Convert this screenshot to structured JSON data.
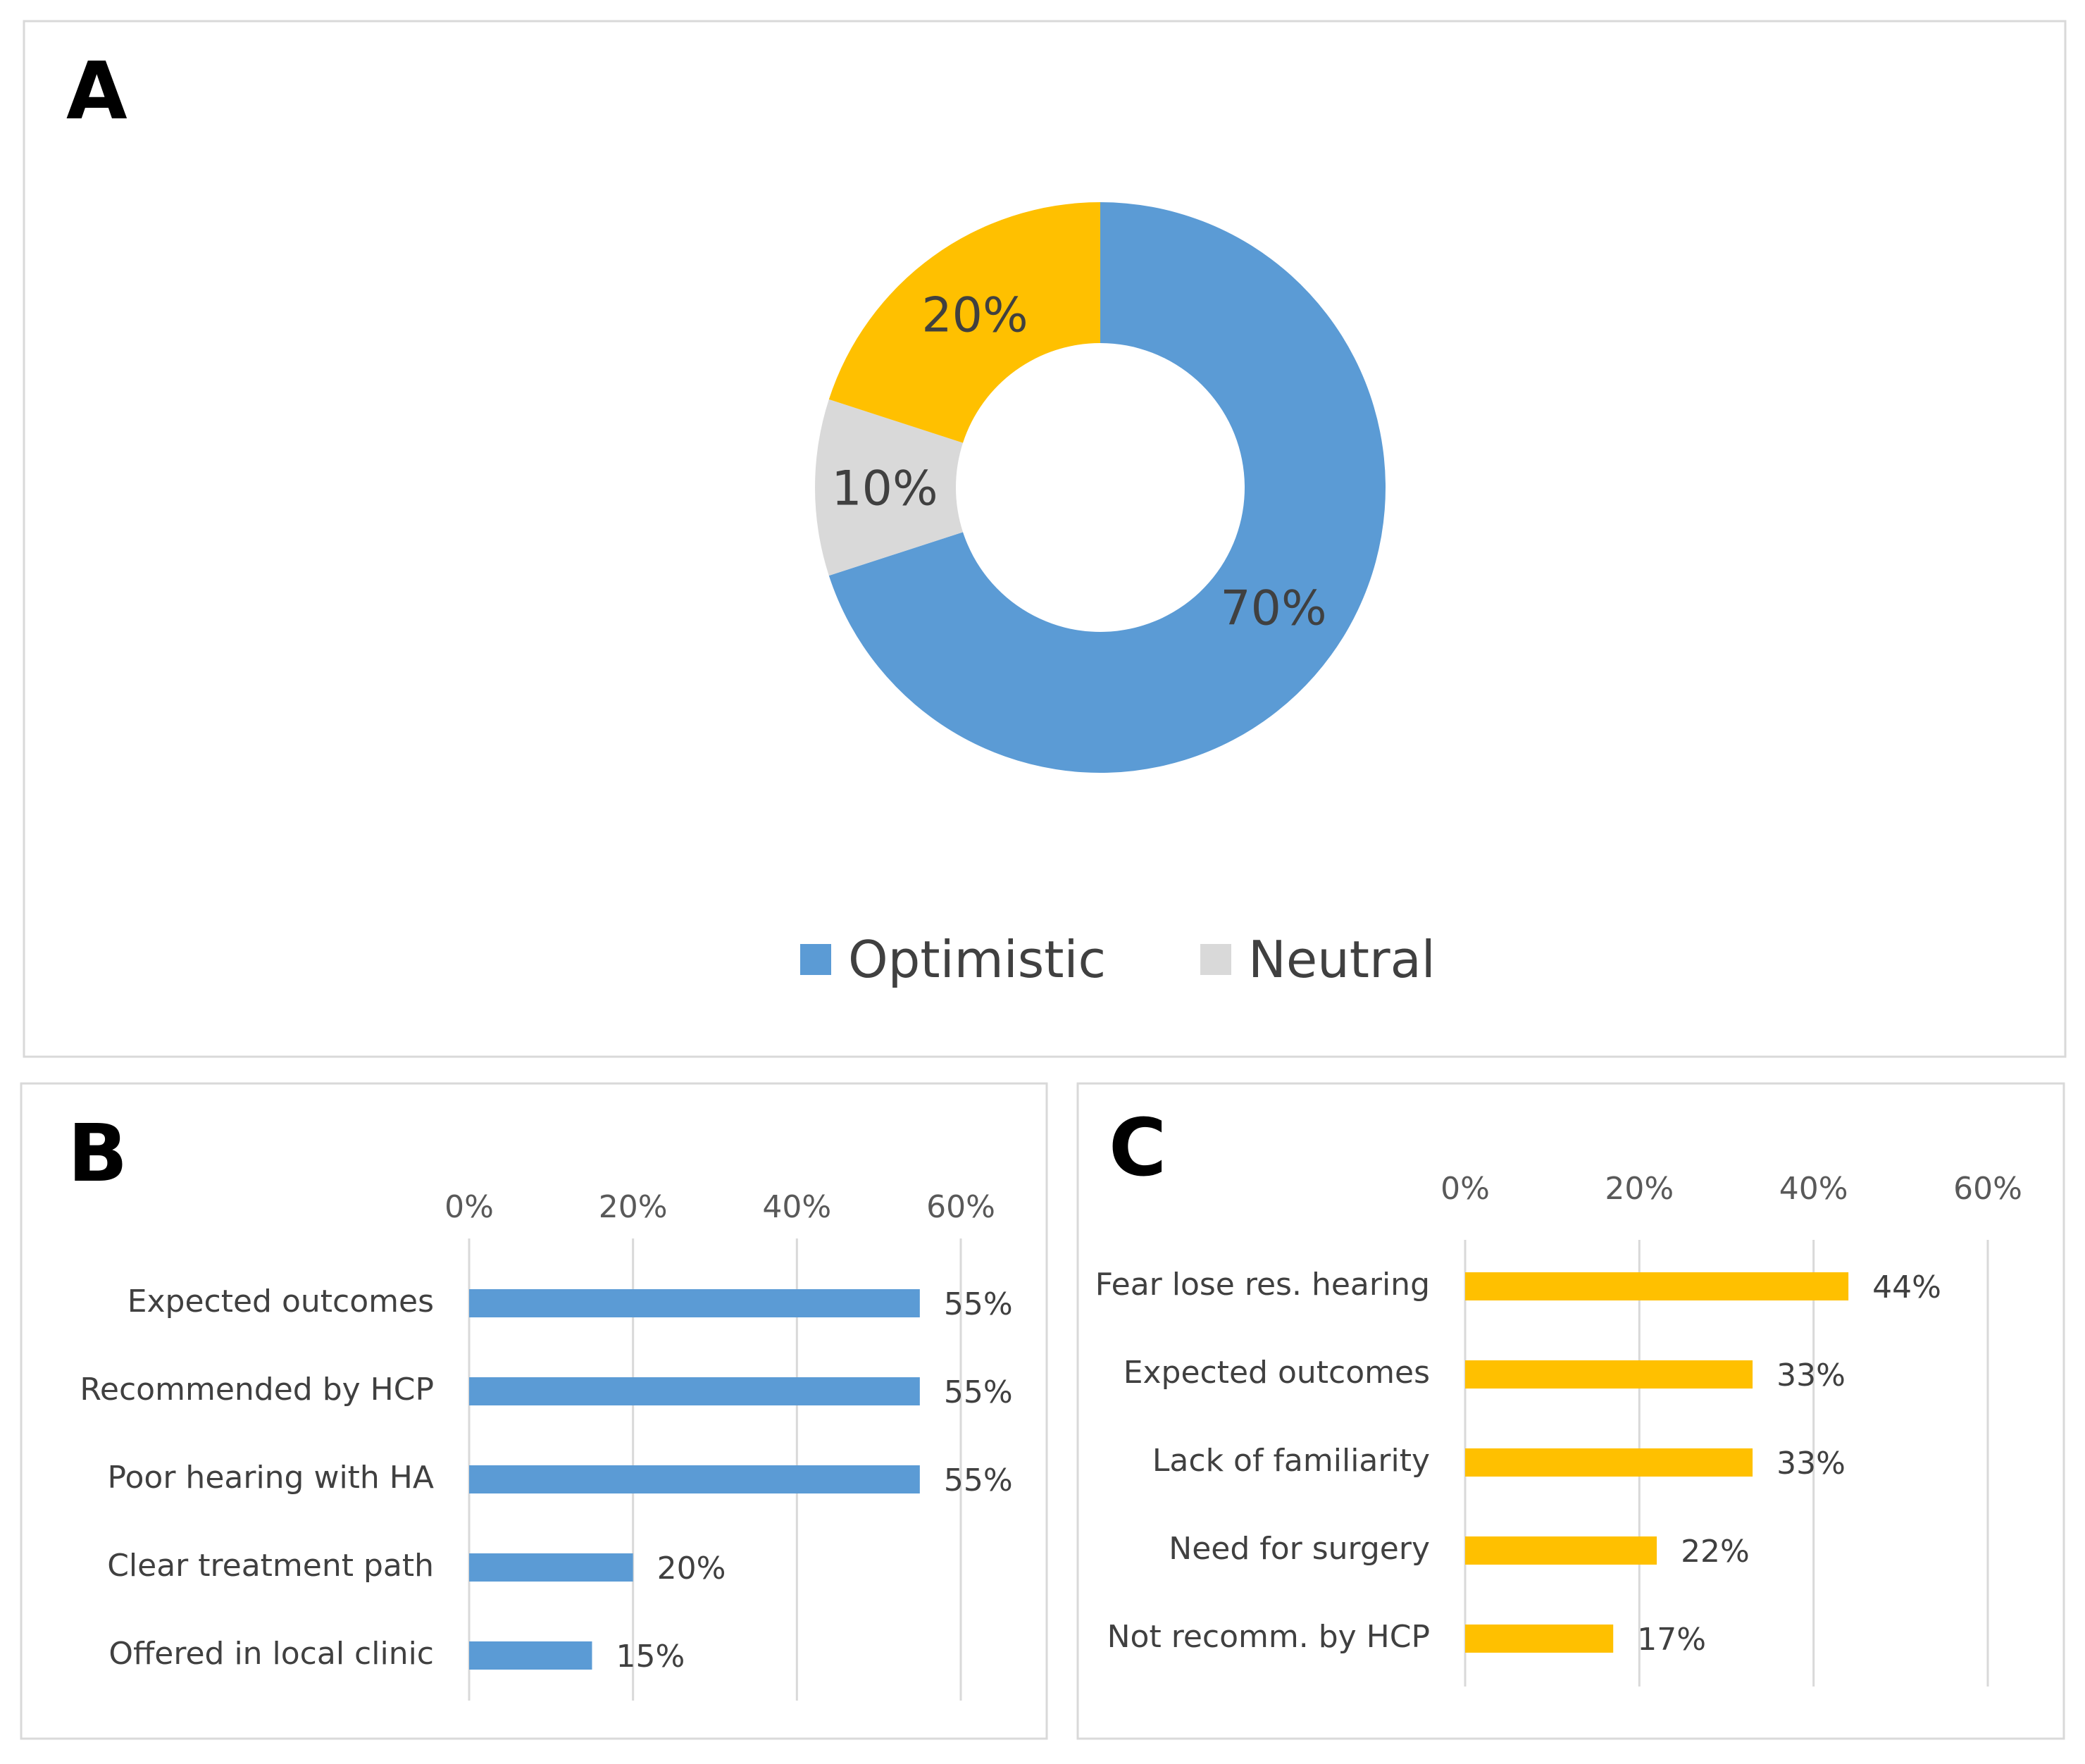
{
  "chart_data": [
    {
      "panel": "A",
      "type": "pie",
      "variant": "donut",
      "slices": [
        {
          "name": "Optimistic",
          "value": 70,
          "label": "70%",
          "color": "#5b9bd5"
        },
        {
          "name": "Neutral",
          "value": 10,
          "label": "10%",
          "color": "#d9d9d9"
        },
        {
          "name": "",
          "value": 20,
          "label": "20%",
          "color": "#ffc000"
        }
      ],
      "legend": [
        "Optimistic",
        "Neutral"
      ],
      "legend_position": "bottom"
    },
    {
      "panel": "B",
      "type": "bar",
      "orientation": "horizontal",
      "color": "#5b9bd5",
      "categories": [
        "Expected outcomes",
        "Recommended by HCP",
        "Poor hearing with HA",
        "Clear treatment path",
        "Offered in local clinic"
      ],
      "values": [
        55,
        55,
        55,
        20,
        15
      ],
      "value_labels": [
        "55%",
        "55%",
        "55%",
        "20%",
        "15%"
      ],
      "xlim": [
        0,
        60
      ],
      "xticks": [
        "0%",
        "20%",
        "40%",
        "60%"
      ],
      "axis_position": "top",
      "grid": true
    },
    {
      "panel": "C",
      "type": "bar",
      "orientation": "horizontal",
      "color": "#ffc000",
      "categories": [
        "Fear lose res. hearing",
        "Expected outcomes",
        "Lack of familiarity",
        "Need for surgery",
        "Not recomm. by HCP"
      ],
      "values": [
        44,
        33,
        33,
        22,
        17
      ],
      "value_labels": [
        "44%",
        "33%",
        "33%",
        "22%",
        "17%"
      ],
      "xlim": [
        0,
        60
      ],
      "xticks": [
        "0%",
        "20%",
        "40%",
        "60%"
      ],
      "axis_position": "top",
      "grid": true
    }
  ]
}
